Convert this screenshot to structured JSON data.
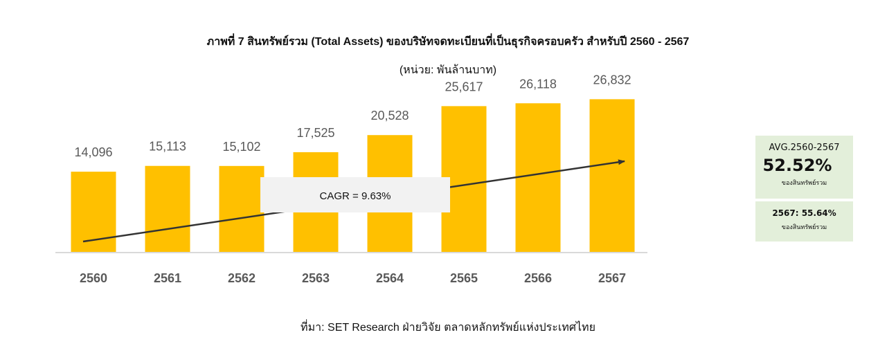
{
  "chart_data": {
    "type": "bar",
    "title": "ภาพที่ 7 สินทรัพย์รวม (Total Assets) ของบริษัทจดทะเบียนที่เป็นธุรกิจครอบครัว สำหรับปี 2560 - 2567",
    "subtitle": "(หน่วย: พันล้านบาท)",
    "categories": [
      "2560",
      "2561",
      "2562",
      "2563",
      "2564",
      "2565",
      "2566",
      "2567"
    ],
    "values": [
      14096,
      15113,
      15102,
      17525,
      20528,
      25617,
      26118,
      26832
    ],
    "value_labels": [
      "14,096",
      "15,113",
      "15,102",
      "17,525",
      "20,528",
      "25,617",
      "26,118",
      "26,832"
    ],
    "ylim": [
      0,
      36000
    ],
    "grid": false,
    "bar_color": "#FFC000",
    "annotation": "CAGR = 9.63%"
  },
  "side_panel": {
    "avg_label": "AVG.2560-2567",
    "avg_value": "52.52%",
    "avg_note": "ของสินทรัพย์รวม",
    "latest_value": "2567: 55.64%",
    "latest_note": "ของสินทรัพย์รวม",
    "background": "#E3EFDA"
  },
  "source": "ที่มา: SET Research ฝ่ายวิจัย ตลาดหลักทรัพย์แห่งประเทศไทย"
}
